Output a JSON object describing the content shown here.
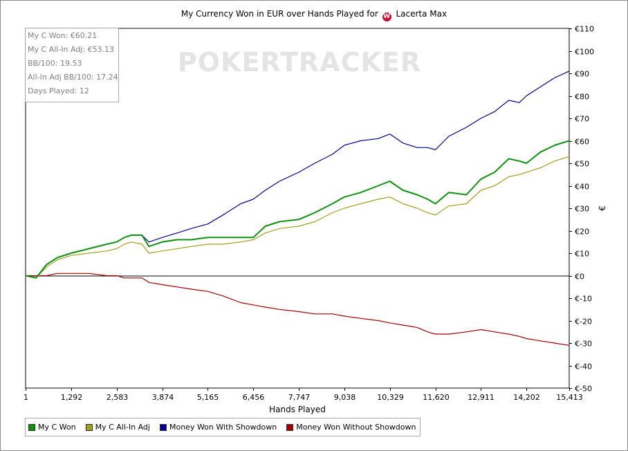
{
  "chart_data": {
    "type": "line",
    "title": "My Currency Won in EUR over Hands Played for",
    "player_name": "Lacerta Max",
    "site_logo": "W",
    "watermark": "POKERTRACKER",
    "xlabel": "Hands Played",
    "ylabel": "€",
    "xlim": [
      1,
      15413
    ],
    "ylim": [
      -50,
      110
    ],
    "x_ticks": [
      1,
      1292,
      2583,
      3874,
      5165,
      6456,
      7747,
      9038,
      10329,
      11620,
      12911,
      14202,
      15413
    ],
    "x_tick_labels": [
      "1",
      "1,292",
      "2,583",
      "3,874",
      "5,165",
      "6,456",
      "7,747",
      "9,038",
      "10,329",
      "11,620",
      "12,911",
      "14,202",
      "15,413"
    ],
    "y_ticks": [
      -50,
      -40,
      -30,
      -20,
      -10,
      0,
      10,
      20,
      30,
      40,
      50,
      60,
      70,
      80,
      90,
      100,
      110
    ],
    "y_tick_labels": [
      "€-50",
      "€-40",
      "€-30",
      "€-20",
      "€-10",
      "€0",
      "€10",
      "€20",
      "€30",
      "€40",
      "€50",
      "€60",
      "€70",
      "€80",
      "€90",
      "€100",
      "€110"
    ],
    "grid": false,
    "legend_position": "bottom-left",
    "x": [
      1,
      300,
      600,
      900,
      1292,
      1800,
      2300,
      2583,
      2800,
      3000,
      3300,
      3500,
      3874,
      4300,
      4700,
      5165,
      5600,
      6100,
      6456,
      6800,
      7200,
      7747,
      8200,
      8700,
      9038,
      9500,
      10000,
      10329,
      10700,
      11100,
      11400,
      11620,
      12000,
      12500,
      12911,
      13300,
      13700,
      14000,
      14202,
      14600,
      15000,
      15413
    ],
    "series": [
      {
        "name": "My C Won",
        "color": "#109010",
        "values": [
          0,
          -1,
          5,
          8,
          10,
          12,
          14,
          15,
          17,
          18,
          18,
          13,
          15,
          16,
          16,
          17,
          17,
          17,
          17,
          22,
          24,
          25,
          28,
          32,
          35,
          37,
          40,
          42,
          38,
          36,
          34,
          32,
          37,
          36,
          43,
          46,
          52,
          51,
          50,
          55,
          58,
          60
        ]
      },
      {
        "name": "My C All-In Adj",
        "color": "#a0a020",
        "values": [
          0,
          -1,
          4,
          7,
          9,
          10,
          11,
          12,
          14,
          15,
          14,
          10,
          11,
          12,
          13,
          14,
          14,
          15,
          16,
          19,
          21,
          22,
          24,
          28,
          30,
          32,
          34,
          35,
          32,
          30,
          28,
          27,
          31,
          32,
          38,
          40,
          44,
          45,
          46,
          48,
          51,
          53
        ]
      },
      {
        "name": "Money Won With Showdown",
        "color": "#000090",
        "values": [
          0,
          -1,
          5,
          8,
          10,
          12,
          14,
          15,
          17,
          18,
          18,
          15,
          17,
          19,
          21,
          23,
          27,
          32,
          34,
          38,
          42,
          46,
          50,
          54,
          58,
          60,
          61,
          63,
          59,
          57,
          57,
          56,
          62,
          66,
          70,
          73,
          78,
          77,
          80,
          84,
          88,
          91
        ]
      },
      {
        "name": "Money Won Without Showdown",
        "color": "#a00000",
        "values": [
          0,
          0,
          0,
          1,
          1,
          1,
          0,
          0,
          -1,
          -1,
          -1,
          -3,
          -4,
          -5,
          -6,
          -7,
          -9,
          -12,
          -13,
          -14,
          -15,
          -16,
          -17,
          -17,
          -18,
          -19,
          -20,
          -21,
          -22,
          -23,
          -25,
          -26,
          -26,
          -25,
          -24,
          -25,
          -26,
          -27,
          -28,
          -29,
          -30,
          -31
        ]
      }
    ]
  },
  "stats_box": {
    "lines": [
      "My C Won: €60.21",
      "My C All-In Adj: €53.13",
      "BB/100: 19.53",
      "All-In Adj BB/100: 17.24",
      "Days Played: 12"
    ]
  }
}
